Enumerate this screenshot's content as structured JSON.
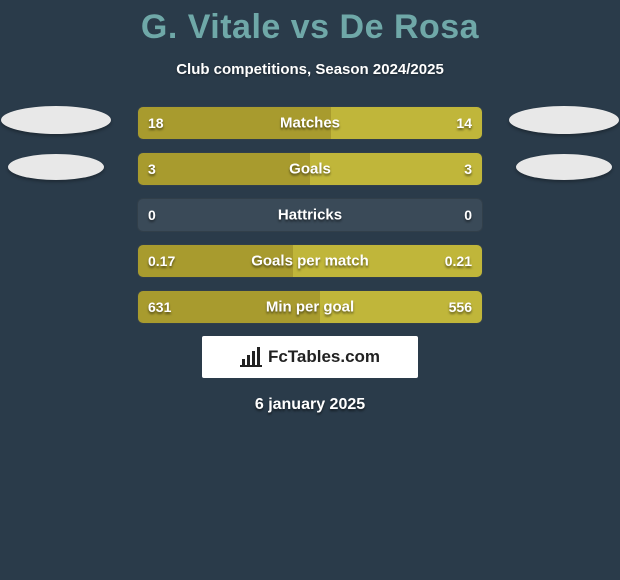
{
  "title": "G. Vitale vs De Rosa",
  "subtitle": "Club competitions, Season 2024/2025",
  "footer_date": "6 january 2025",
  "brand": "FcTables.com",
  "colors": {
    "background": "#2a3b4a",
    "title": "#6fa8a8",
    "text": "#ffffff",
    "bar_left": "#a89b2e",
    "bar_right": "#c0b63a",
    "row_bg": "#3a4a58",
    "ellipse": "#e8e8e8",
    "brand_bg": "#ffffff"
  },
  "rows": [
    {
      "label": "Matches",
      "left_value": "18",
      "right_value": "14",
      "left_pct": 56,
      "right_pct": 44
    },
    {
      "label": "Goals",
      "left_value": "3",
      "right_value": "3",
      "left_pct": 50,
      "right_pct": 50
    },
    {
      "label": "Hattricks",
      "left_value": "0",
      "right_value": "0",
      "left_pct": 0,
      "right_pct": 0
    },
    {
      "label": "Goals per match",
      "left_value": "0.17",
      "right_value": "0.21",
      "left_pct": 45,
      "right_pct": 55
    },
    {
      "label": "Min per goal",
      "left_value": "631",
      "right_value": "556",
      "left_pct": 53,
      "right_pct": 47
    }
  ]
}
